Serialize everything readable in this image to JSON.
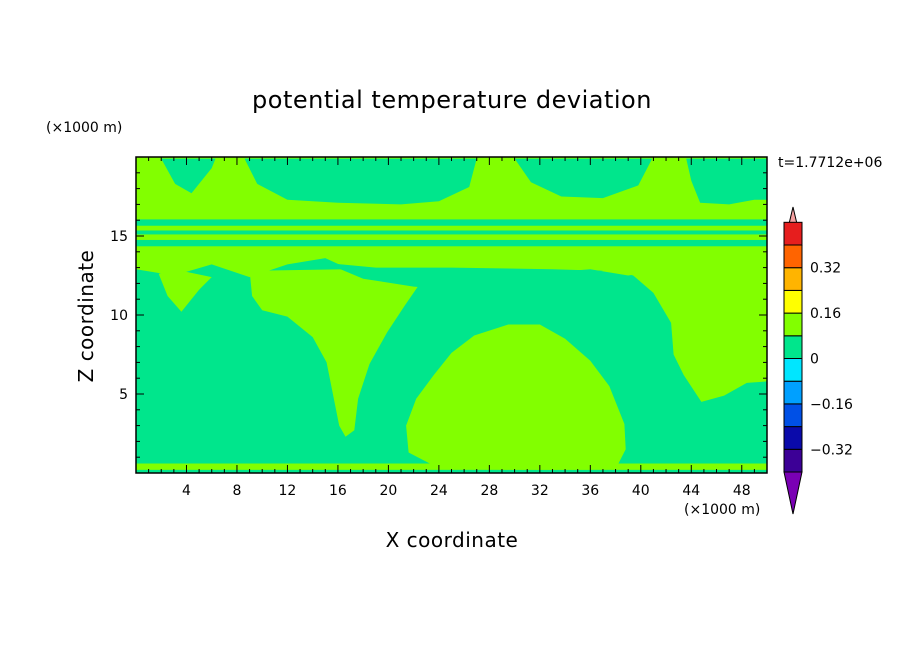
{
  "chart_data": {
    "type": "heatmap",
    "title": "potential temperature deviation",
    "xlabel": "X coordinate",
    "ylabel": "Z coordinate",
    "x_unit_label": "(×1000 m)",
    "y_unit_label": "(×1000 m)",
    "time_label": "t=1.7712e+06",
    "xlim": [
      0,
      50
    ],
    "ylim": [
      0,
      20
    ],
    "x_ticks": [
      4,
      8,
      12,
      16,
      20,
      24,
      28,
      32,
      36,
      40,
      44,
      48
    ],
    "y_ticks": [
      5,
      10,
      15
    ],
    "colorbar": {
      "levels": [
        -0.48,
        -0.4,
        -0.32,
        -0.24,
        -0.16,
        -0.08,
        0,
        0.08,
        0.16,
        0.24,
        0.32,
        0.4,
        0.48
      ],
      "colors": [
        "#7a00b4",
        "#3c0096",
        "#0a0aaa",
        "#0050e6",
        "#00a0ff",
        "#00e6ff",
        "#00e68c",
        "#82ff00",
        "#ffff00",
        "#ffb400",
        "#ff6400",
        "#e61e1e",
        "#f5a0a0"
      ],
      "tick_values": [
        0.32,
        0.16,
        0,
        -0.16,
        -0.32
      ],
      "tick_labels": [
        "0.32",
        "0.16",
        "0",
        "−0.16",
        "−0.32"
      ]
    },
    "field": {
      "background_band": {
        "range": [
          -0.08,
          0
        ],
        "color": "#00e68c"
      },
      "regions": [
        {
          "range": [
            0,
            0.08
          ],
          "color": "#82ff00",
          "description": "upper-level region z≈13–20",
          "points": [
            [
              0,
              12.9
            ],
            [
              3,
              12.5
            ],
            [
              6,
              13.2
            ],
            [
              9,
              12.4
            ],
            [
              12,
              13.2
            ],
            [
              15,
              13.6
            ],
            [
              18,
              12.5
            ],
            [
              21,
              12.8
            ],
            [
              24,
              12.9
            ],
            [
              27,
              12.6
            ],
            [
              30,
              12.4
            ],
            [
              33,
              12.7
            ],
            [
              36,
              12.9
            ],
            [
              39,
              12.5
            ],
            [
              42,
              12.9
            ],
            [
              45,
              12.6
            ],
            [
              48,
              12.9
            ],
            [
              50,
              12.6
            ],
            [
              50,
              20
            ],
            [
              0,
              20
            ]
          ]
        },
        {
          "range": [
            0,
            0.08
          ],
          "color": "#82ff00",
          "description": "left-center tongue",
          "points": [
            [
              1.8,
              12.6
            ],
            [
              2.5,
              11.2
            ],
            [
              3.6,
              10.2
            ],
            [
              5,
              11.6
            ],
            [
              6,
              12.4
            ],
            [
              3,
              12.9
            ]
          ]
        },
        {
          "range": [
            0,
            0.08
          ],
          "color": "#82ff00",
          "description": "central tongue down to z≈2.3",
          "points": [
            [
              9,
              12.8
            ],
            [
              9.2,
              11.2
            ],
            [
              10,
              10.3
            ],
            [
              12,
              9.9
            ],
            [
              14,
              8.6
            ],
            [
              15.1,
              7
            ],
            [
              15.6,
              5
            ],
            [
              16.1,
              3
            ],
            [
              16.6,
              2.3
            ],
            [
              17.3,
              2.7
            ],
            [
              17.6,
              4.7
            ],
            [
              18.5,
              6.9
            ],
            [
              19.9,
              8.9
            ],
            [
              21.3,
              10.6
            ],
            [
              22.6,
              12.1
            ],
            [
              24.4,
              13
            ]
          ]
        },
        {
          "range": [
            0,
            0.08
          ],
          "color": "#82ff00",
          "description": "right tongue",
          "points": [
            [
              37,
              13
            ],
            [
              39.4,
              12.5
            ],
            [
              41,
              11.4
            ],
            [
              42.4,
              9.5
            ],
            [
              42.6,
              7.5
            ],
            [
              43.4,
              6.2
            ],
            [
              44.8,
              4.5
            ],
            [
              46.6,
              4.9
            ],
            [
              48.4,
              5.7
            ],
            [
              50,
              5.8
            ],
            [
              50,
              13
            ]
          ]
        },
        {
          "range": [
            0,
            0.08
          ],
          "color": "#82ff00",
          "description": "lower dome z≈0.5–9.6",
          "points": [
            [
              21.6,
              1.3
            ],
            [
              21.4,
              3
            ],
            [
              22.2,
              4.7
            ],
            [
              23.6,
              6.2
            ],
            [
              25,
              7.6
            ],
            [
              26.8,
              8.7
            ],
            [
              29.5,
              9.4
            ],
            [
              32,
              9.4
            ],
            [
              34,
              8.5
            ],
            [
              36,
              7.1
            ],
            [
              37.5,
              5.5
            ],
            [
              38.7,
              3.1
            ],
            [
              38.8,
              1.5
            ],
            [
              38.1,
              0.4
            ],
            [
              36,
              0.2
            ],
            [
              30,
              0.2
            ],
            [
              24,
              0.3
            ]
          ]
        },
        {
          "range": [
            -0.08,
            0
          ],
          "color": "#00e68c",
          "description": "pocket below tropopause",
          "points": [
            [
              15,
              13.3
            ],
            [
              18,
              12.3
            ],
            [
              22,
              11.8
            ],
            [
              27,
              11.5
            ],
            [
              31,
              11.8
            ],
            [
              35,
              12.3
            ],
            [
              37,
              12.8
            ],
            [
              33,
              12.9
            ],
            [
              25,
              13
            ],
            [
              19,
              13
            ]
          ]
        },
        {
          "range": [
            -0.08,
            0
          ],
          "color": "#00e68c",
          "description": "mid-left upper pocket",
          "points": [
            [
              2,
              19.9
            ],
            [
              3.1,
              18.3
            ],
            [
              4.4,
              17.7
            ],
            [
              6,
              19.3
            ],
            [
              6.3,
              19.9
            ]
          ]
        },
        {
          "range": [
            -0.08,
            0
          ],
          "color": "#00e68c",
          "description": "upper pocket z≈17–20, x≈8–27",
          "points": [
            [
              8.6,
              19.9
            ],
            [
              9.6,
              18.3
            ],
            [
              12,
              17.3
            ],
            [
              16,
              17.1
            ],
            [
              21,
              17
            ],
            [
              24,
              17.2
            ],
            [
              26.4,
              18.1
            ],
            [
              27,
              19.9
            ]
          ]
        },
        {
          "range": [
            -0.08,
            0
          ],
          "color": "#00e68c",
          "description": "upper pocket z≈17–20, x≈30–41",
          "points": [
            [
              30,
              19.9
            ],
            [
              31.3,
              18.4
            ],
            [
              33.7,
              17.5
            ],
            [
              37,
              17.4
            ],
            [
              39.8,
              18.2
            ],
            [
              40.9,
              19.9
            ]
          ]
        },
        {
          "range": [
            -0.08,
            0
          ],
          "color": "#00e68c",
          "description": "right edge upper band",
          "points": [
            [
              43.6,
              19.9
            ],
            [
              44,
              18.5
            ],
            [
              44.7,
              17.1
            ],
            [
              47,
              17
            ],
            [
              49,
              17.3
            ],
            [
              50,
              17.3
            ],
            [
              50,
              19.9
            ]
          ]
        }
      ],
      "bands": [
        {
          "range": [
            -0.08,
            0
          ],
          "color": "#00e68c",
          "z": [
            15.1,
            15.35
          ]
        },
        {
          "range": [
            0,
            0.08
          ],
          "color": "#82ff00",
          "z": [
            15.35,
            15.65
          ]
        },
        {
          "range": [
            -0.08,
            0
          ],
          "color": "#00e68c",
          "z": [
            15.65,
            16.05
          ]
        },
        {
          "range": [
            0,
            0.08
          ],
          "color": "#82ff00",
          "z": [
            13.95,
            14.35
          ]
        },
        {
          "range": [
            -0.08,
            0
          ],
          "color": "#00e68c",
          "z": [
            14.35,
            14.75
          ]
        }
      ],
      "surface_layer": {
        "range": [
          0,
          0.08
        ],
        "color": "#82ff00",
        "z": [
          0.2,
          0.6
        ]
      }
    }
  }
}
